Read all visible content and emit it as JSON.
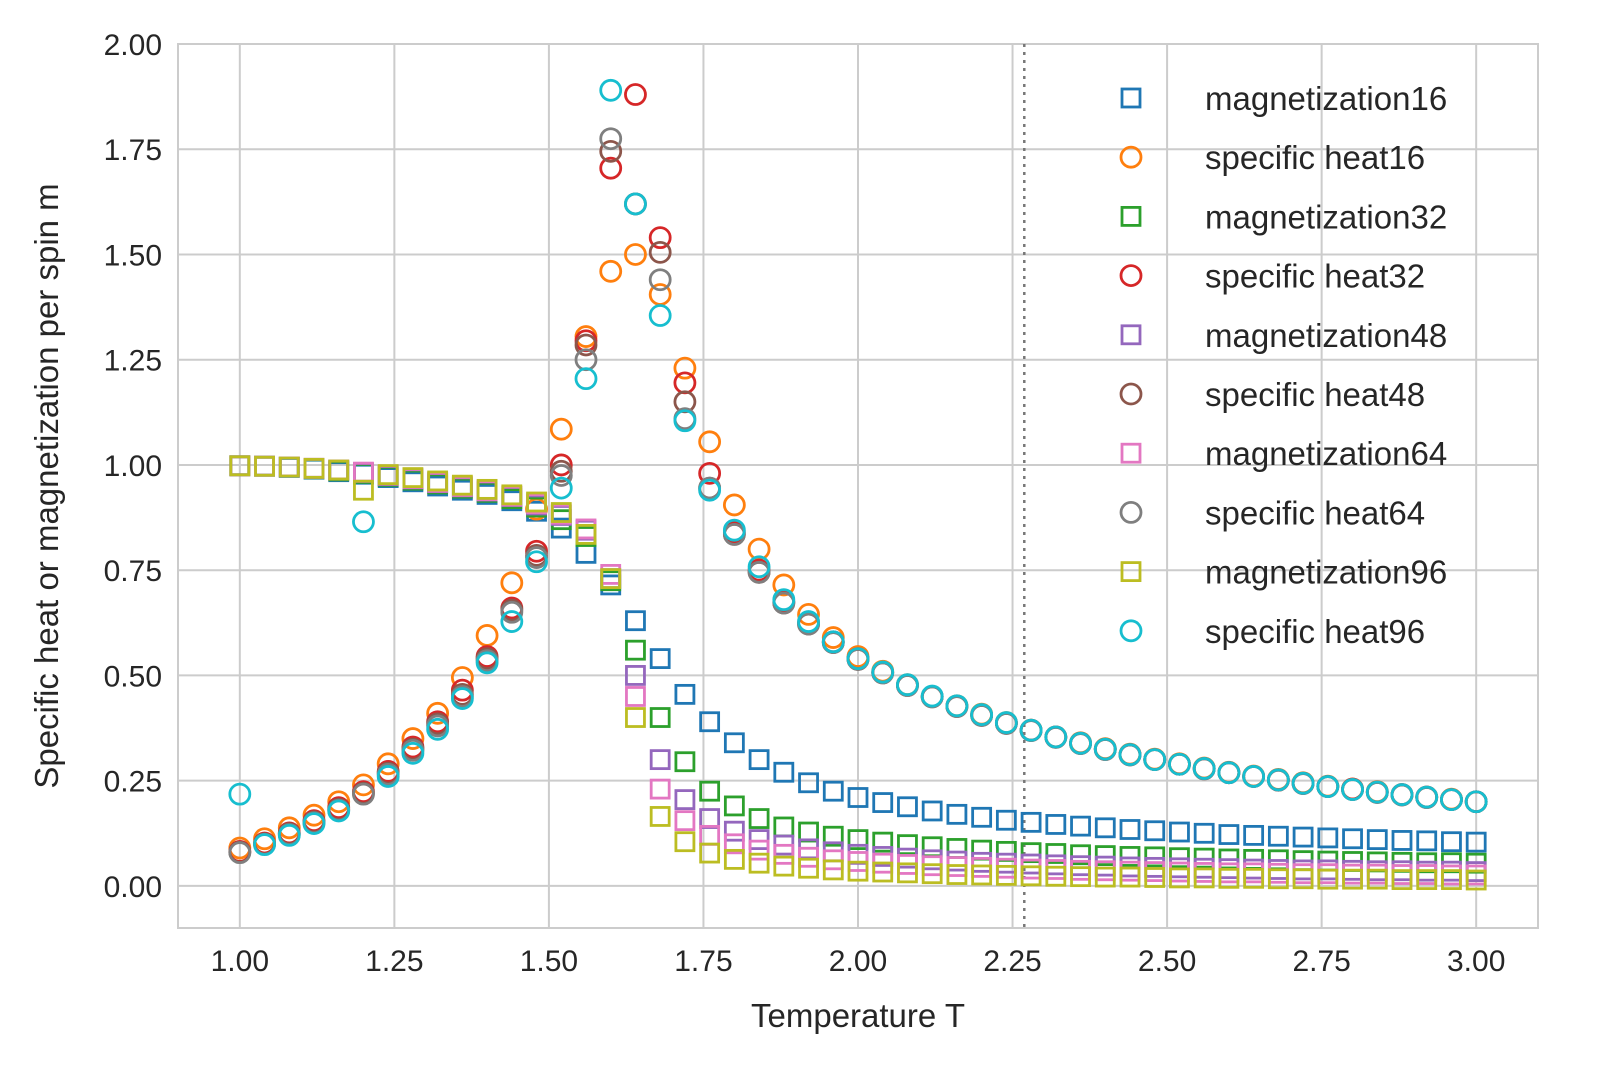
{
  "chart_data": {
    "type": "scatter",
    "title": "",
    "xlabel": "Temperature T",
    "ylabel": "Specific heat or magnetization per spin m",
    "xlim": [
      0.9,
      3.1
    ],
    "ylim": [
      -0.1,
      2.0
    ],
    "xticks": [
      "1.00",
      "1.25",
      "1.50",
      "1.75",
      "2.00",
      "2.25",
      "2.50",
      "2.75",
      "3.00"
    ],
    "yticks": [
      "0.00",
      "0.25",
      "0.50",
      "0.75",
      "1.00",
      "1.25",
      "1.50",
      "1.75",
      "2.00"
    ],
    "grid": true,
    "legend_position": "top-right",
    "vline": {
      "x": 2.269,
      "style": "dotted",
      "color": "#777777"
    },
    "x": [
      1.0,
      1.04,
      1.08,
      1.12,
      1.16,
      1.2,
      1.24,
      1.28,
      1.32,
      1.36,
      1.4,
      1.44,
      1.48,
      1.52,
      1.56,
      1.6,
      1.64,
      1.68,
      1.72,
      1.76,
      1.8,
      1.84,
      1.88,
      1.92,
      1.96,
      2.0,
      2.04,
      2.08,
      2.12,
      2.16,
      2.2,
      2.24,
      2.28,
      2.32,
      2.36,
      2.4,
      2.44,
      2.48,
      2.52,
      2.56,
      2.6,
      2.64,
      2.68,
      2.72,
      2.76,
      2.8,
      2.84,
      2.88,
      2.92,
      2.96,
      3.0
    ],
    "series": [
      {
        "name": "magnetization16",
        "marker": "square",
        "color": "#1f77b4",
        "values": [
          0.998,
          0.997,
          0.994,
          0.99,
          0.984,
          0.978,
          0.97,
          0.96,
          0.95,
          0.94,
          0.93,
          0.915,
          0.89,
          0.85,
          0.79,
          0.715,
          0.63,
          0.54,
          0.455,
          0.39,
          0.34,
          0.3,
          0.27,
          0.245,
          0.225,
          0.21,
          0.198,
          0.188,
          0.178,
          0.17,
          0.163,
          0.156,
          0.151,
          0.146,
          0.142,
          0.138,
          0.134,
          0.131,
          0.128,
          0.125,
          0.122,
          0.12,
          0.118,
          0.116,
          0.114,
          0.112,
          0.11,
          0.108,
          0.107,
          0.105,
          0.104
        ]
      },
      {
        "name": "specific heat16",
        "marker": "circle",
        "color": "#ff7f0e",
        "values": [
          0.09,
          0.112,
          0.138,
          0.168,
          0.2,
          0.24,
          0.29,
          0.35,
          0.41,
          0.495,
          0.595,
          0.72,
          0.895,
          1.085,
          1.305,
          1.46,
          1.5,
          1.405,
          1.23,
          1.055,
          0.905,
          0.8,
          0.715,
          0.645,
          0.59,
          0.545,
          0.51,
          0.478,
          0.45,
          0.428,
          0.408,
          0.388,
          0.37,
          0.354,
          0.34,
          0.326,
          0.313,
          0.301,
          0.29,
          0.28,
          0.27,
          0.261,
          0.253,
          0.245,
          0.237,
          0.23,
          0.224,
          0.217,
          0.211,
          0.206,
          0.2
        ]
      },
      {
        "name": "magnetization32",
        "marker": "square",
        "color": "#2ca02c",
        "values": [
          0.998,
          0.997,
          0.995,
          0.991,
          0.986,
          0.98,
          0.973,
          0.964,
          0.955,
          0.945,
          0.935,
          0.92,
          0.9,
          0.87,
          0.83,
          0.725,
          0.56,
          0.4,
          0.295,
          0.225,
          0.19,
          0.16,
          0.14,
          0.128,
          0.118,
          0.11,
          0.104,
          0.098,
          0.093,
          0.089,
          0.085,
          0.082,
          0.079,
          0.077,
          0.074,
          0.072,
          0.07,
          0.069,
          0.067,
          0.066,
          0.064,
          0.063,
          0.062,
          0.06,
          0.059,
          0.058,
          0.057,
          0.056,
          0.055,
          0.055,
          0.054
        ]
      },
      {
        "name": "specific heat32",
        "marker": "circle",
        "color": "#d62728",
        "values": [
          0.082,
          0.102,
          0.126,
          0.155,
          0.186,
          0.224,
          0.272,
          0.33,
          0.39,
          0.465,
          0.545,
          0.66,
          0.795,
          1.0,
          1.295,
          1.705,
          1.88,
          1.54,
          1.195,
          0.98,
          0.84,
          0.75,
          0.675,
          0.625,
          0.58,
          0.54,
          0.507,
          0.477,
          0.45,
          0.427,
          0.406,
          0.387,
          0.37,
          0.354,
          0.339,
          0.325,
          0.312,
          0.3,
          0.289,
          0.279,
          0.269,
          0.26,
          0.252,
          0.244,
          0.236,
          0.23,
          0.223,
          0.217,
          0.211,
          0.205,
          0.2
        ]
      },
      {
        "name": "magnetization48",
        "marker": "square",
        "color": "#9467bd",
        "values": [
          0.998,
          0.997,
          0.995,
          0.992,
          0.988,
          0.982,
          0.975,
          0.967,
          0.958,
          0.948,
          0.938,
          0.925,
          0.905,
          0.88,
          0.845,
          0.73,
          0.5,
          0.3,
          0.205,
          0.16,
          0.13,
          0.11,
          0.097,
          0.088,
          0.081,
          0.075,
          0.07,
          0.066,
          0.062,
          0.059,
          0.056,
          0.054,
          0.052,
          0.05,
          0.048,
          0.047,
          0.045,
          0.044,
          0.043,
          0.042,
          0.041,
          0.04,
          0.039,
          0.038,
          0.038,
          0.037,
          0.036,
          0.036,
          0.035,
          0.035,
          0.034
        ]
      },
      {
        "name": "specific heat48",
        "marker": "circle",
        "color": "#8c564b",
        "values": [
          0.08,
          0.1,
          0.124,
          0.152,
          0.182,
          0.22,
          0.268,
          0.325,
          0.385,
          0.455,
          0.54,
          0.655,
          0.785,
          0.985,
          1.285,
          1.745,
          1.62,
          1.505,
          1.15,
          0.945,
          0.835,
          0.745,
          0.672,
          0.622,
          0.578,
          0.538,
          0.506,
          0.476,
          0.449,
          0.426,
          0.405,
          0.386,
          0.369,
          0.353,
          0.338,
          0.324,
          0.311,
          0.3,
          0.289,
          0.278,
          0.269,
          0.26,
          0.251,
          0.243,
          0.236,
          0.229,
          0.222,
          0.216,
          0.21,
          0.205,
          0.2
        ]
      },
      {
        "name": "magnetization64",
        "marker": "square",
        "color": "#e377c2",
        "values": [
          0.998,
          0.997,
          0.995,
          0.992,
          0.988,
          0.983,
          0.976,
          0.968,
          0.959,
          0.949,
          0.939,
          0.926,
          0.908,
          0.883,
          0.848,
          0.74,
          0.45,
          0.23,
          0.155,
          0.12,
          0.1,
          0.085,
          0.075,
          0.068,
          0.062,
          0.058,
          0.054,
          0.051,
          0.048,
          0.046,
          0.044,
          0.042,
          0.04,
          0.039,
          0.037,
          0.036,
          0.035,
          0.034,
          0.033,
          0.032,
          0.031,
          0.031,
          0.03,
          0.029,
          0.029,
          0.028,
          0.028,
          0.027,
          0.027,
          0.026,
          0.026
        ]
      },
      {
        "name": "specific heat64",
        "marker": "circle",
        "color": "#7f7f7f",
        "values": [
          0.079,
          0.099,
          0.122,
          0.15,
          0.18,
          0.218,
          0.265,
          0.322,
          0.38,
          0.45,
          0.535,
          0.65,
          0.78,
          0.975,
          1.25,
          1.775,
          1.62,
          1.44,
          1.11,
          0.945,
          0.835,
          0.745,
          0.672,
          0.622,
          0.578,
          0.538,
          0.506,
          0.476,
          0.449,
          0.426,
          0.405,
          0.386,
          0.369,
          0.353,
          0.338,
          0.324,
          0.311,
          0.3,
          0.289,
          0.278,
          0.269,
          0.26,
          0.251,
          0.243,
          0.236,
          0.229,
          0.222,
          0.216,
          0.21,
          0.205,
          0.2
        ]
      },
      {
        "name": "magnetization96",
        "marker": "square",
        "color": "#bcbd22",
        "values": [
          0.998,
          0.997,
          0.995,
          0.992,
          0.988,
          0.94,
          0.977,
          0.97,
          0.962,
          0.952,
          0.942,
          0.929,
          0.912,
          0.887,
          0.835,
          0.73,
          0.4,
          0.165,
          0.105,
          0.078,
          0.063,
          0.054,
          0.047,
          0.042,
          0.038,
          0.035,
          0.033,
          0.031,
          0.029,
          0.027,
          0.026,
          0.025,
          0.024,
          0.023,
          0.022,
          0.021,
          0.021,
          0.02,
          0.019,
          0.019,
          0.018,
          0.018,
          0.017,
          0.017,
          0.016,
          0.016,
          0.016,
          0.015,
          0.015,
          0.015,
          0.014
        ]
      },
      {
        "name": "specific heat96",
        "marker": "circle",
        "color": "#17becf",
        "values": [
          0.218,
          0.098,
          0.12,
          0.148,
          0.178,
          0.865,
          0.26,
          0.315,
          0.372,
          0.445,
          0.53,
          0.628,
          0.77,
          0.945,
          1.205,
          1.89,
          1.62,
          1.355,
          1.105,
          0.94,
          0.845,
          0.758,
          0.68,
          0.628,
          0.58,
          0.54,
          0.508,
          0.478,
          0.451,
          0.428,
          0.407,
          0.388,
          0.37,
          0.354,
          0.339,
          0.325,
          0.312,
          0.3,
          0.289,
          0.279,
          0.269,
          0.26,
          0.252,
          0.244,
          0.236,
          0.229,
          0.223,
          0.217,
          0.211,
          0.205,
          0.2
        ]
      }
    ]
  }
}
